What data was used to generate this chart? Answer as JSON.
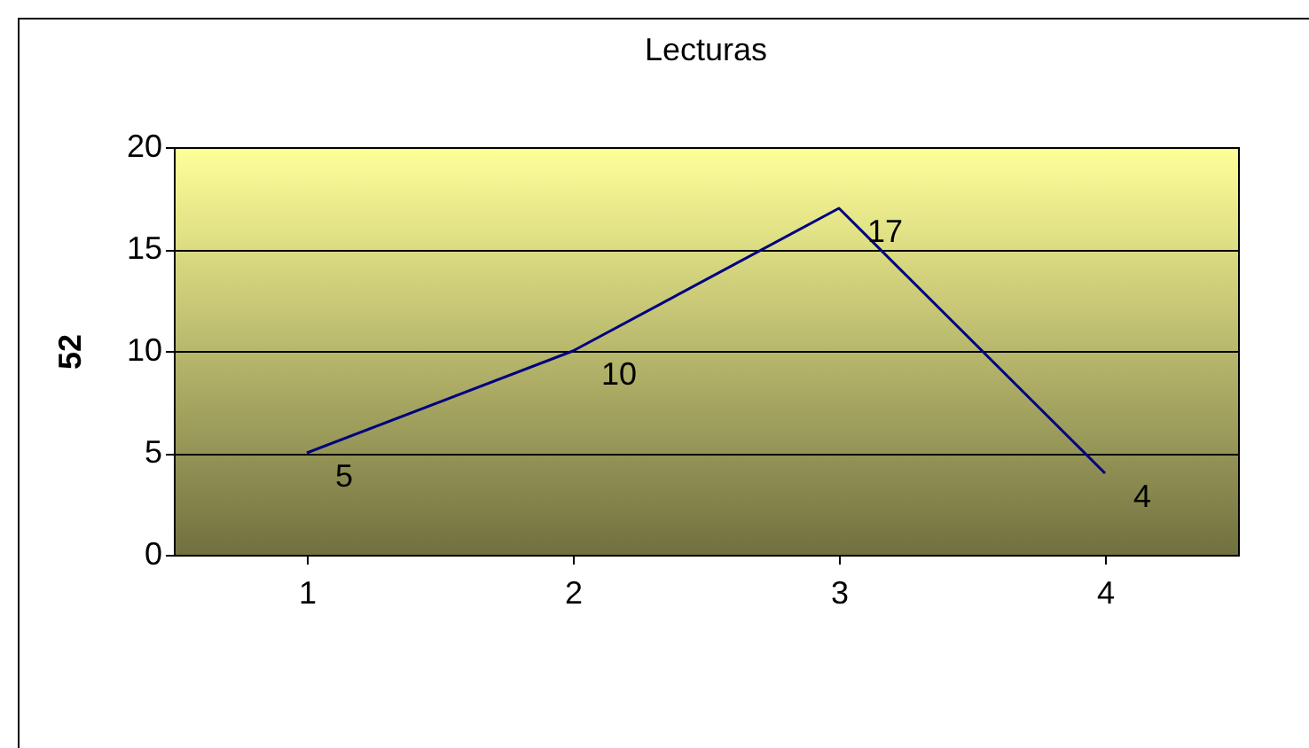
{
  "chart_data": {
    "type": "line",
    "title": "Lecturas",
    "ylabel": "52",
    "categories": [
      "1",
      "2",
      "3",
      "4"
    ],
    "series": [
      {
        "color": "#000080",
        "values": [
          5,
          10,
          17,
          4
        ]
      }
    ],
    "ylim": [
      0,
      20
    ],
    "yticks": [
      0,
      5,
      10,
      15,
      20
    ],
    "grid": "y",
    "data_labels": true,
    "legend": false,
    "marker": "none"
  }
}
